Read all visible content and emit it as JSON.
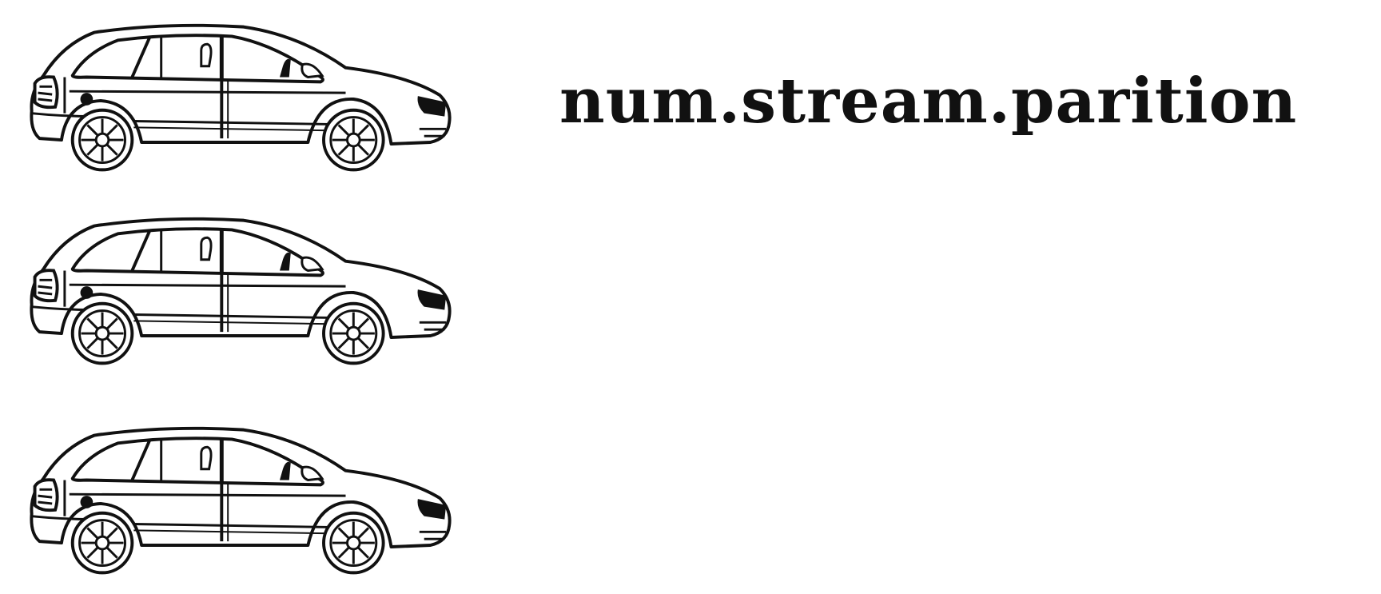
{
  "title": "num.stream.parition",
  "colors": {
    "background": "#ffffff",
    "ink": "#111111"
  },
  "cars": [
    {
      "icon": "hatchback-car-icon"
    },
    {
      "icon": "hatchback-car-icon"
    },
    {
      "icon": "hatchback-car-icon"
    }
  ]
}
